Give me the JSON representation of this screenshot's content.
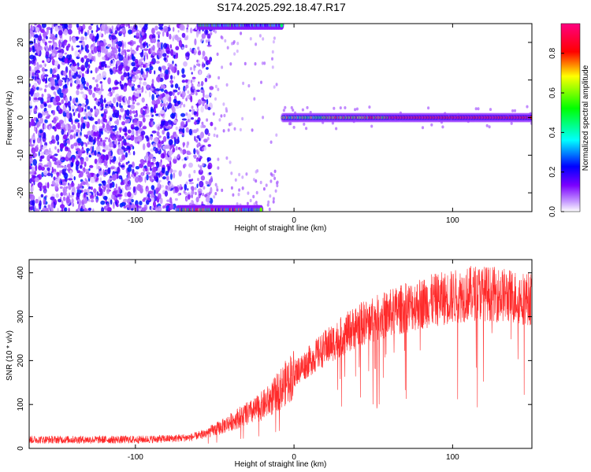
{
  "title": "S174.2025.292.18.47.R17",
  "chart_data": [
    {
      "type": "heatmap",
      "xlabel": "Height of straight line (km)",
      "ylabel": "Frequency (Hz)",
      "xlim": [
        -167,
        150
      ],
      "ylim": [
        -25,
        25
      ],
      "xticks": [
        -100,
        0,
        100
      ],
      "yticks": [
        -20,
        -10,
        0,
        10,
        20
      ],
      "colorbar": {
        "label": "Normalized spectral amplitude",
        "range": [
          0,
          0.95
        ],
        "ticks": [
          0,
          0.2,
          0.4,
          0.6,
          0.8
        ],
        "tick_labels": [
          "0.0",
          "0.2",
          "0.4",
          "0.6",
          "0.8"
        ],
        "colormap": [
          "#ffffff",
          "#7b00ff",
          "#0000ff",
          "#00ffff",
          "#00ff00",
          "#ffff00",
          "#ff0000",
          "#ff0080"
        ]
      },
      "regions": [
        {
          "name": "noise",
          "x": [
            -167,
            -60
          ],
          "y": [
            -25,
            25
          ],
          "amplitude": [
            0.05,
            0.25
          ]
        },
        {
          "name": "tone-at-0Hz",
          "x": [
            -7,
            150
          ],
          "y": [
            -1,
            1
          ],
          "amplitude": [
            0.4,
            0.95
          ]
        },
        {
          "name": "low-edge-band",
          "x": [
            -73,
            -20
          ],
          "y": [
            -25,
            -23
          ],
          "amplitude": [
            0.2,
            0.9
          ]
        },
        {
          "name": "high-edge-band",
          "x": [
            -60,
            -7
          ],
          "y": [
            23,
            25
          ],
          "amplitude": [
            0.2,
            0.6
          ]
        }
      ]
    },
    {
      "type": "line",
      "xlabel": "Height of straight line (km)",
      "ylabel": "SNR (10 * v/v)",
      "xlim": [
        -167,
        150
      ],
      "ylim": [
        0,
        430
      ],
      "xticks": [
        -100,
        0,
        100
      ],
      "yticks": [
        0,
        100,
        200,
        300,
        400
      ],
      "color": "#ff2a2a",
      "envelope": {
        "x": [
          -167,
          -130,
          -100,
          -80,
          -65,
          -55,
          -45,
          -35,
          -25,
          -15,
          -5,
          0,
          10,
          20,
          30,
          40,
          55,
          70,
          85,
          100,
          115,
          130,
          150
        ],
        "y": [
          20,
          20,
          20,
          22,
          25,
          35,
          50,
          70,
          85,
          110,
          150,
          170,
          200,
          230,
          255,
          280,
          300,
          320,
          335,
          345,
          355,
          350,
          340
        ]
      }
    }
  ]
}
